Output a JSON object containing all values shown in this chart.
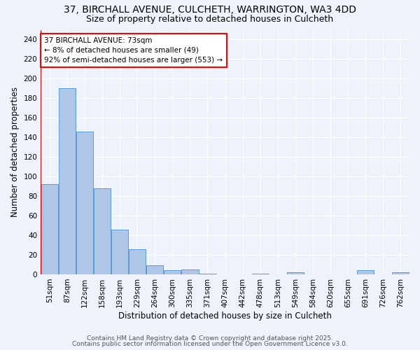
{
  "title_line1": "37, BIRCHALL AVENUE, CULCHETH, WARRINGTON, WA3 4DD",
  "title_line2": "Size of property relative to detached houses in Culcheth",
  "xlabel": "Distribution of detached houses by size in Culcheth",
  "ylabel": "Number of detached properties",
  "bin_labels": [
    "51sqm",
    "87sqm",
    "122sqm",
    "158sqm",
    "193sqm",
    "229sqm",
    "264sqm",
    "300sqm",
    "335sqm",
    "371sqm",
    "407sqm",
    "442sqm",
    "478sqm",
    "513sqm",
    "549sqm",
    "584sqm",
    "620sqm",
    "655sqm",
    "691sqm",
    "726sqm",
    "762sqm"
  ],
  "bar_values": [
    92,
    190,
    146,
    88,
    46,
    26,
    9,
    4,
    5,
    1,
    0,
    0,
    1,
    0,
    2,
    0,
    0,
    0,
    4,
    0,
    2
  ],
  "bar_color": "#aec6e8",
  "bar_edge_color": "#5b9bd5",
  "annotation_text": "37 BIRCHALL AVENUE: 73sqm\n← 8% of detached houses are smaller (49)\n92% of semi-detached houses are larger (553) →",
  "annotation_box_color": "white",
  "annotation_box_edge": "red",
  "ylim": [
    0,
    250
  ],
  "yticks": [
    0,
    20,
    40,
    60,
    80,
    100,
    120,
    140,
    160,
    180,
    200,
    220,
    240
  ],
  "background_color": "#eef2fb",
  "grid_color": "white",
  "footer_line1": "Contains HM Land Registry data © Crown copyright and database right 2025.",
  "footer_line2": "Contains public sector information licensed under the Open Government Licence v3.0.",
  "title_fontsize": 10,
  "subtitle_fontsize": 9,
  "axis_label_fontsize": 8.5,
  "tick_fontsize": 7.5,
  "annotation_fontsize": 7.5,
  "footer_fontsize": 6.5
}
